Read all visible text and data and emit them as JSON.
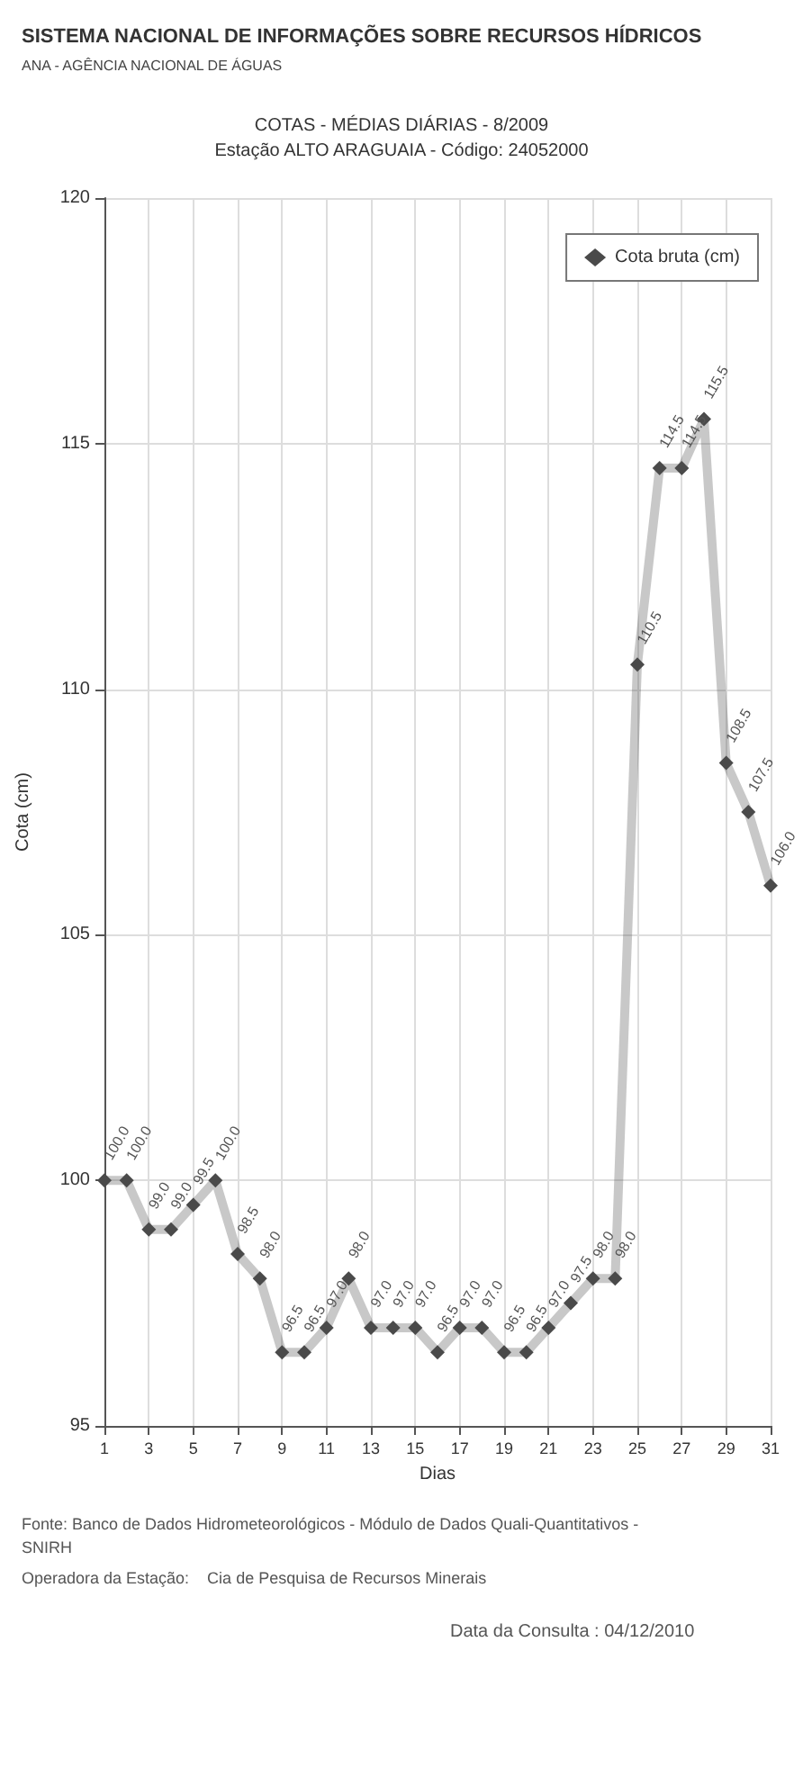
{
  "chart_data": {
    "type": "line",
    "title": "COTAS - MÉDIAS DIÁRIAS - 8/2009",
    "subtitle": "Estação ALTO ARAGUAIA - Código: 24052000",
    "xlabel": "Dias",
    "ylabel": "Cota (cm)",
    "annotations": [
      "SISTEMA NACIONAL DE INFORMAÇÕES SOBRE RECURSOS HÍDRICOS",
      "ANA - AGÊNCIA NACIONAL DE ÁGUAS",
      "Fonte: Banco de Dados Hidrometeorológicos - Módulo de Dados Quali-Quantitativos - SNIRH",
      "Operadora da Estação:    Cia de Pesquisa de Recursos Minerais",
      "Data da Consulta : 04/12/2010"
    ],
    "x": [
      1,
      2,
      3,
      4,
      5,
      6,
      7,
      8,
      9,
      10,
      11,
      12,
      13,
      14,
      15,
      16,
      17,
      18,
      19,
      20,
      21,
      22,
      23,
      24,
      25,
      26,
      27,
      28,
      29,
      30,
      31
    ],
    "series": [
      {
        "name": "Cota bruta (cm)",
        "color": "#4a4a4a",
        "values": [
          100.0,
          100.0,
          99.0,
          99.0,
          99.5,
          100.0,
          98.5,
          98.0,
          96.5,
          96.5,
          97.0,
          98.0,
          97.0,
          97.0,
          97.0,
          96.5,
          97.0,
          97.0,
          96.5,
          96.5,
          97.0,
          97.5,
          98.0,
          98.0,
          110.5,
          114.5,
          114.5,
          115.5,
          108.5,
          107.5,
          106.0
        ],
        "value_labels": [
          "100.0",
          "100.0",
          "99.0",
          "99.0",
          "99.5",
          "100.0",
          "98.5",
          "98.0",
          "96.5",
          "96.5",
          "97.0",
          "98.0",
          "97.0",
          "97.0",
          "97.0",
          "96.5",
          "97.0",
          "97.0",
          "96.5",
          "96.5",
          "97.0",
          "97.5",
          "98.0",
          "98.0",
          "110.5",
          "114.5",
          "114.5",
          "115.5",
          "108.5",
          "107.5",
          "106.0"
        ]
      }
    ],
    "xlim": [
      1,
      31
    ],
    "xticks": [
      1,
      3,
      5,
      7,
      9,
      11,
      13,
      15,
      17,
      19,
      21,
      23,
      25,
      27,
      29,
      31
    ],
    "ylim": [
      95,
      120
    ],
    "yticks": [
      95,
      100,
      105,
      110,
      115,
      120
    ],
    "grid": true,
    "legend": "top right",
    "marker": "diamond",
    "line_style": "solid"
  }
}
